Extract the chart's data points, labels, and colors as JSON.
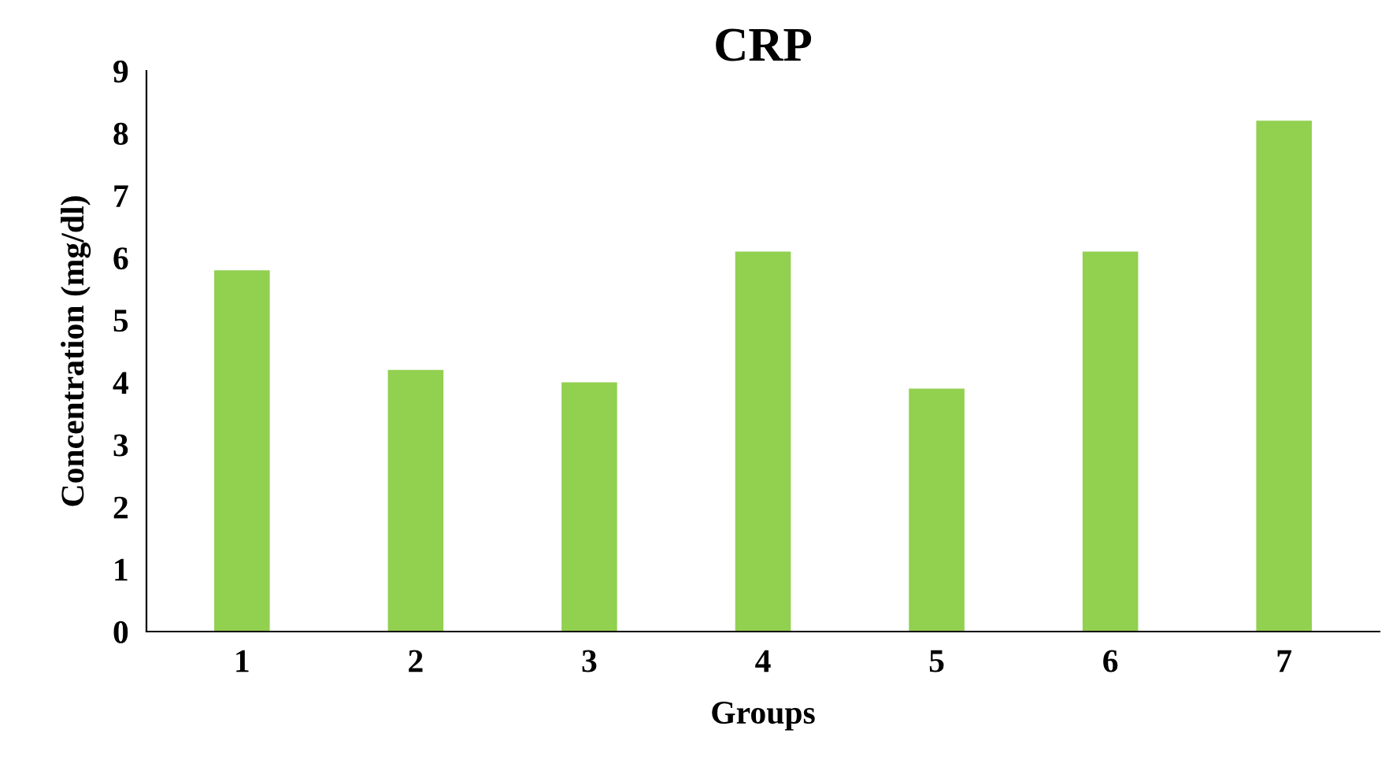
{
  "chart_data": {
    "type": "bar",
    "title": "CRP",
    "xlabel": "Groups",
    "ylabel": "Concentration (mg/dl)",
    "categories": [
      "1",
      "2",
      "3",
      "4",
      "5",
      "6",
      "7"
    ],
    "values": [
      5.8,
      4.2,
      4.0,
      6.1,
      3.9,
      6.1,
      8.2
    ],
    "color": "#92d050",
    "ylim": [
      0,
      9
    ],
    "yticks": [
      0,
      1,
      2,
      3,
      4,
      5,
      6,
      7,
      8,
      9
    ],
    "grid": false
  }
}
